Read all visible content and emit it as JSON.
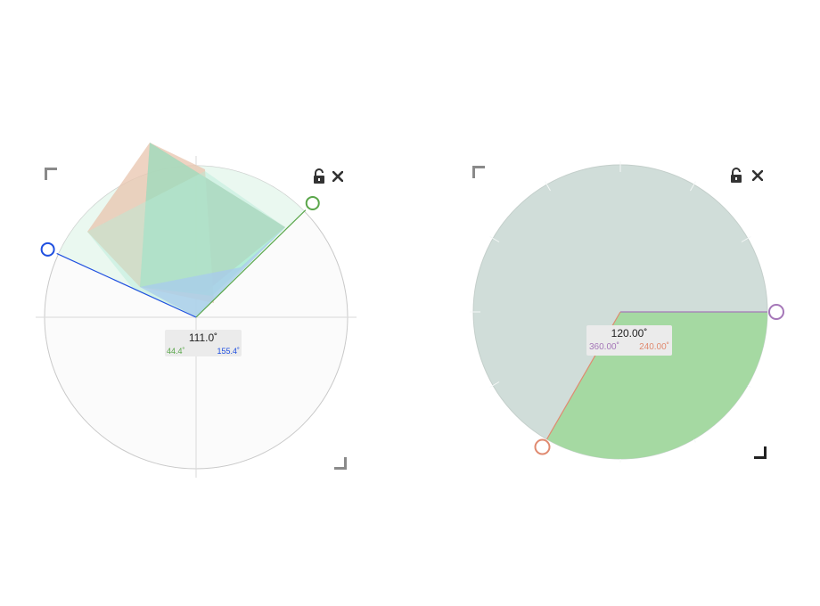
{
  "protractor_left": {
    "angle_label": "111.0˚",
    "start_label": "44.4˚",
    "end_label": "155.4˚",
    "start_deg": 44.4,
    "end_deg": 155.4,
    "colors": {
      "start": "#5aa64a",
      "end": "#1f4fe0",
      "fill": "#d6f5e6",
      "shape_green": "#7fe6c2",
      "shape_orange": "#e8b59a",
      "shape_red": "#e08878",
      "shape_blue": "#9ec8ee"
    },
    "icons": {
      "lock": "unlock-icon",
      "close": "close-icon"
    }
  },
  "protractor_right": {
    "angle_label": "120.00˚",
    "start_label": "360.00˚",
    "end_label": "240.00˚",
    "start_deg": 0,
    "end_deg": 240,
    "colors": {
      "start": "#a577b8",
      "end": "#e08a70",
      "disk": "#d0ddd9",
      "sector": "#a5d9a2"
    },
    "icons": {
      "lock": "unlock-icon",
      "close": "close-icon"
    }
  }
}
